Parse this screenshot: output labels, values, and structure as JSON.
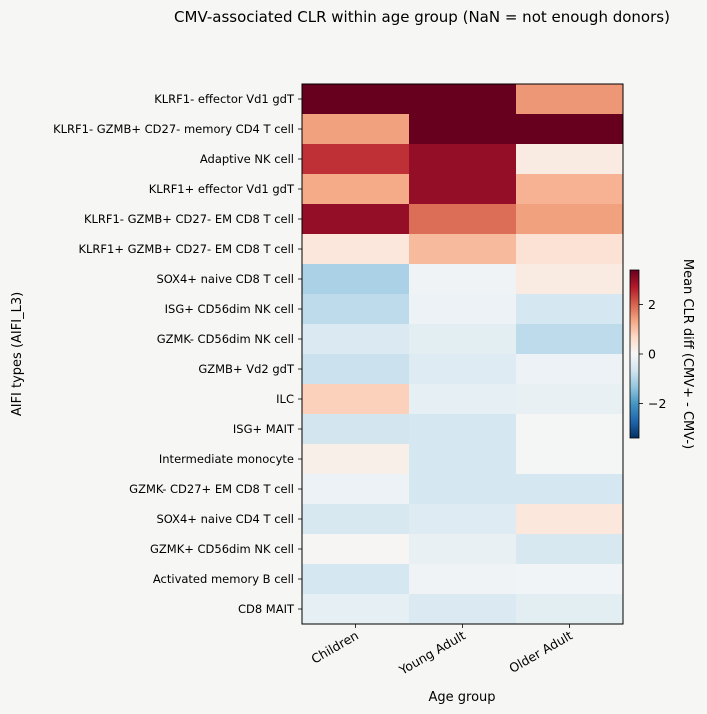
{
  "chart_data": {
    "type": "heatmap",
    "title": "CMV-associated CLR within age group (NaN = not enough donors)",
    "xlabel": "Age group",
    "ylabel": "AIFI types (AIFI_L3)",
    "x": [
      "Children",
      "Young Adult",
      "Older Adult"
    ],
    "y": [
      "KLRF1- effector Vd1 gdT",
      "KLRF1- GZMB+ CD27- memory CD4 T cell",
      "Adaptive NK cell",
      "KLRF1+ effector Vd1 gdT",
      "KLRF1- GZMB+ CD27- EM CD8 T cell",
      "KLRF1+ GZMB+ CD27- EM CD8 T cell",
      "SOX4+ naive CD8 T cell",
      "ISG+ CD56dim NK cell",
      "GZMK- CD56dim NK cell",
      "GZMB+ Vd2 gdT",
      "ILC",
      "ISG+ MAIT",
      "Intermediate monocyte",
      "GZMK- CD27+ EM CD8 T cell",
      "SOX4+ naive CD4 T cell",
      "GZMK+ CD56dim NK cell",
      "Activated memory B cell",
      "CD8 MAIT"
    ],
    "values": [
      [
        3.4,
        3.4,
        1.5
      ],
      [
        1.4,
        3.4,
        3.4
      ],
      [
        2.5,
        3.0,
        0.3
      ],
      [
        1.3,
        3.0,
        1.2
      ],
      [
        3.0,
        1.9,
        1.4
      ],
      [
        0.4,
        1.1,
        0.5
      ],
      [
        -1.1,
        -0.15,
        0.3
      ],
      [
        -0.9,
        -0.2,
        -0.6
      ],
      [
        -0.5,
        -0.35,
        -0.9
      ],
      [
        -0.75,
        -0.45,
        -0.2
      ],
      [
        0.8,
        -0.3,
        -0.25
      ],
      [
        -0.65,
        -0.6,
        -0.05
      ],
      [
        0.2,
        -0.6,
        -0.05
      ],
      [
        -0.2,
        -0.6,
        -0.6
      ],
      [
        -0.55,
        -0.45,
        0.4
      ],
      [
        0.05,
        -0.25,
        -0.55
      ],
      [
        -0.6,
        -0.15,
        -0.1
      ],
      [
        -0.3,
        -0.5,
        -0.35
      ]
    ],
    "colorbar": {
      "label": "Mean CLR diff (CMV+ - CMV-)",
      "range": [
        -3.4,
        3.4
      ],
      "ticks": [
        -2,
        0,
        2
      ],
      "colormap": "RdBu_r"
    }
  }
}
